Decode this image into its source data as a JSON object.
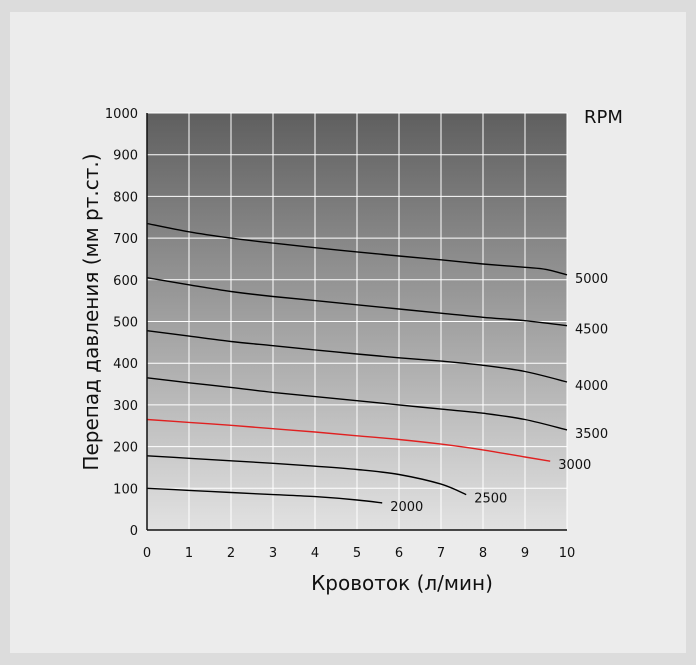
{
  "chart_data": {
    "type": "line",
    "title": "",
    "xlabel": "Кровоток (л/мин)",
    "ylabel": "Перепад давления (мм рт.ст.)",
    "legend_title": "RPM",
    "xlim": [
      0,
      10
    ],
    "ylim": [
      0,
      1000
    ],
    "xticks": [
      0,
      1,
      2,
      3,
      4,
      5,
      6,
      7,
      8,
      9,
      10
    ],
    "yticks": [
      0,
      100,
      200,
      300,
      400,
      500,
      600,
      700,
      800,
      900,
      1000
    ],
    "grid": true,
    "series": [
      {
        "name": "2000",
        "color": "#000000",
        "x": [
          0,
          1,
          2,
          3,
          4,
          5,
          5.6
        ],
        "y": [
          100,
          95,
          90,
          85,
          80,
          72,
          65
        ]
      },
      {
        "name": "2500",
        "color": "#000000",
        "x": [
          0,
          1,
          2,
          3,
          4,
          5,
          6,
          7,
          7.6
        ],
        "y": [
          178,
          172,
          166,
          160,
          153,
          145,
          133,
          110,
          85
        ]
      },
      {
        "name": "3000",
        "color": "#e02020",
        "x": [
          0,
          1,
          2,
          3,
          4,
          5,
          6,
          7,
          8,
          9,
          9.6
        ],
        "y": [
          265,
          258,
          251,
          243,
          235,
          226,
          217,
          206,
          192,
          175,
          165
        ]
      },
      {
        "name": "3500",
        "color": "#000000",
        "x": [
          0,
          1,
          2,
          3,
          4,
          5,
          6,
          7,
          8,
          9,
          10
        ],
        "y": [
          365,
          353,
          342,
          330,
          320,
          310,
          300,
          290,
          280,
          265,
          240
        ]
      },
      {
        "name": "4000",
        "color": "#000000",
        "x": [
          0,
          1,
          2,
          3,
          4,
          5,
          6,
          7,
          8,
          9,
          10
        ],
        "y": [
          478,
          465,
          452,
          442,
          432,
          422,
          413,
          405,
          395,
          380,
          355
        ]
      },
      {
        "name": "4500",
        "color": "#000000",
        "x": [
          0,
          1,
          2,
          3,
          4,
          5,
          6,
          7,
          8,
          9,
          10
        ],
        "y": [
          605,
          588,
          572,
          560,
          550,
          540,
          530,
          520,
          510,
          502,
          490
        ]
      },
      {
        "name": "5000",
        "color": "#000000",
        "x": [
          0,
          1,
          2,
          3,
          4,
          5,
          6,
          7,
          8,
          9,
          9.5,
          10
        ],
        "y": [
          735,
          715,
          700,
          688,
          677,
          667,
          657,
          648,
          638,
          630,
          625,
          612
        ]
      }
    ]
  }
}
